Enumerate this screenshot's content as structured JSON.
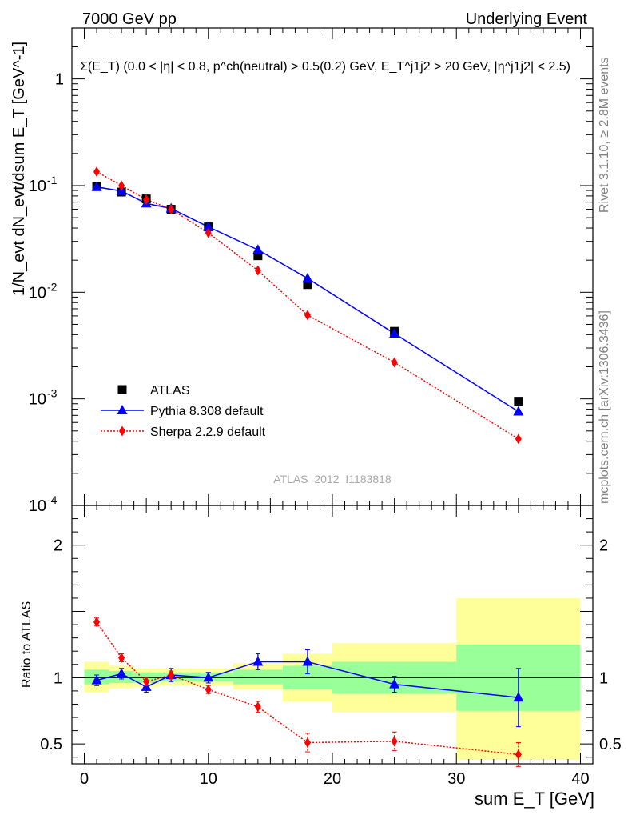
{
  "header": {
    "left": "7000 GeV pp",
    "right": "Underlying Event"
  },
  "side_labels": {
    "rivet": "Rivet 3.1.10, ≥ 2.8M events",
    "mcplots": "mcplots.cern.ch [arXiv:1306.3436]"
  },
  "chart_data": {
    "type": "scatter",
    "title": "Σ(E_T) (0.0 < |η| < 0.8, p^ch(neutral) > 0.5(0.2) GeV, E_T^j1j2 > 20 GeV, |η^j1j2| < 2.5)",
    "xlabel": "sum E_T [GeV]",
    "ylabel": "1/N_evt dN_evt/dsum E_T [GeV^-1]",
    "ratio_ylabel": "Ratio to ATLAS",
    "watermark": "ATLAS_2012_I1183818",
    "xlim": [
      -1,
      41
    ],
    "ylim": [
      0.0001,
      3
    ],
    "yscale": "log",
    "ratio_ylim": [
      0.35,
      2.3
    ],
    "x_ticks": [
      "0",
      "10",
      "20",
      "30",
      "40"
    ],
    "y_ticks": [
      "10^-4",
      "10^-3",
      "10^-2",
      "10^-1",
      "1"
    ],
    "ratio_ticks": [
      "0.5",
      "1",
      "2"
    ],
    "legend_position": "bottom-left",
    "bin_edges": [
      0,
      2,
      4,
      6,
      8,
      12,
      16,
      20,
      30,
      40
    ],
    "x": [
      1,
      3,
      5,
      7,
      10,
      14,
      18,
      25,
      35
    ],
    "series": [
      {
        "name": "ATLAS",
        "color": "#000000",
        "marker": "square",
        "values": [
          0.098,
          0.087,
          0.075,
          0.06,
          0.041,
          0.022,
          0.0118,
          0.0043,
          0.00095
        ]
      },
      {
        "name": "Pythia 8.308 default",
        "color": "#0000ff",
        "marker": "triangle",
        "line": "solid",
        "values": [
          0.097,
          0.089,
          0.068,
          0.061,
          0.041,
          0.025,
          0.0135,
          0.0041,
          0.00076
        ],
        "ratio": [
          0.98,
          1.03,
          0.93,
          1.02,
          1.0,
          1.12,
          1.12,
          0.95,
          0.85
        ],
        "ratio_err": [
          0.04,
          0.04,
          0.04,
          0.05,
          0.04,
          0.06,
          0.09,
          0.06,
          0.22
        ]
      },
      {
        "name": "Sherpa 2.2.9 default",
        "color": "#ff0000",
        "marker": "diamond",
        "line": "dotted",
        "values": [
          0.135,
          0.1,
          0.074,
          0.06,
          0.036,
          0.016,
          0.0061,
          0.0022,
          0.00042
        ],
        "ratio": [
          1.42,
          1.15,
          0.97,
          1.02,
          0.91,
          0.78,
          0.51,
          0.52,
          0.42
        ],
        "ratio_err": [
          0.03,
          0.03,
          0.03,
          0.03,
          0.03,
          0.04,
          0.07,
          0.07,
          0.09
        ]
      }
    ],
    "uncertainty_bands": {
      "green": [
        [
          0.95,
          1.06
        ],
        [
          0.96,
          1.05
        ],
        [
          0.96,
          1.04
        ],
        [
          0.97,
          1.04
        ],
        [
          0.97,
          1.04
        ],
        [
          0.95,
          1.06
        ],
        [
          0.91,
          1.09
        ],
        [
          0.88,
          1.12
        ],
        [
          0.75,
          1.25
        ]
      ],
      "yellow": [
        [
          0.89,
          1.12
        ],
        [
          0.92,
          1.09
        ],
        [
          0.93,
          1.07
        ],
        [
          0.94,
          1.07
        ],
        [
          0.94,
          1.07
        ],
        [
          0.91,
          1.11
        ],
        [
          0.82,
          1.18
        ],
        [
          0.74,
          1.26
        ],
        [
          0.38,
          1.6
        ]
      ]
    }
  }
}
